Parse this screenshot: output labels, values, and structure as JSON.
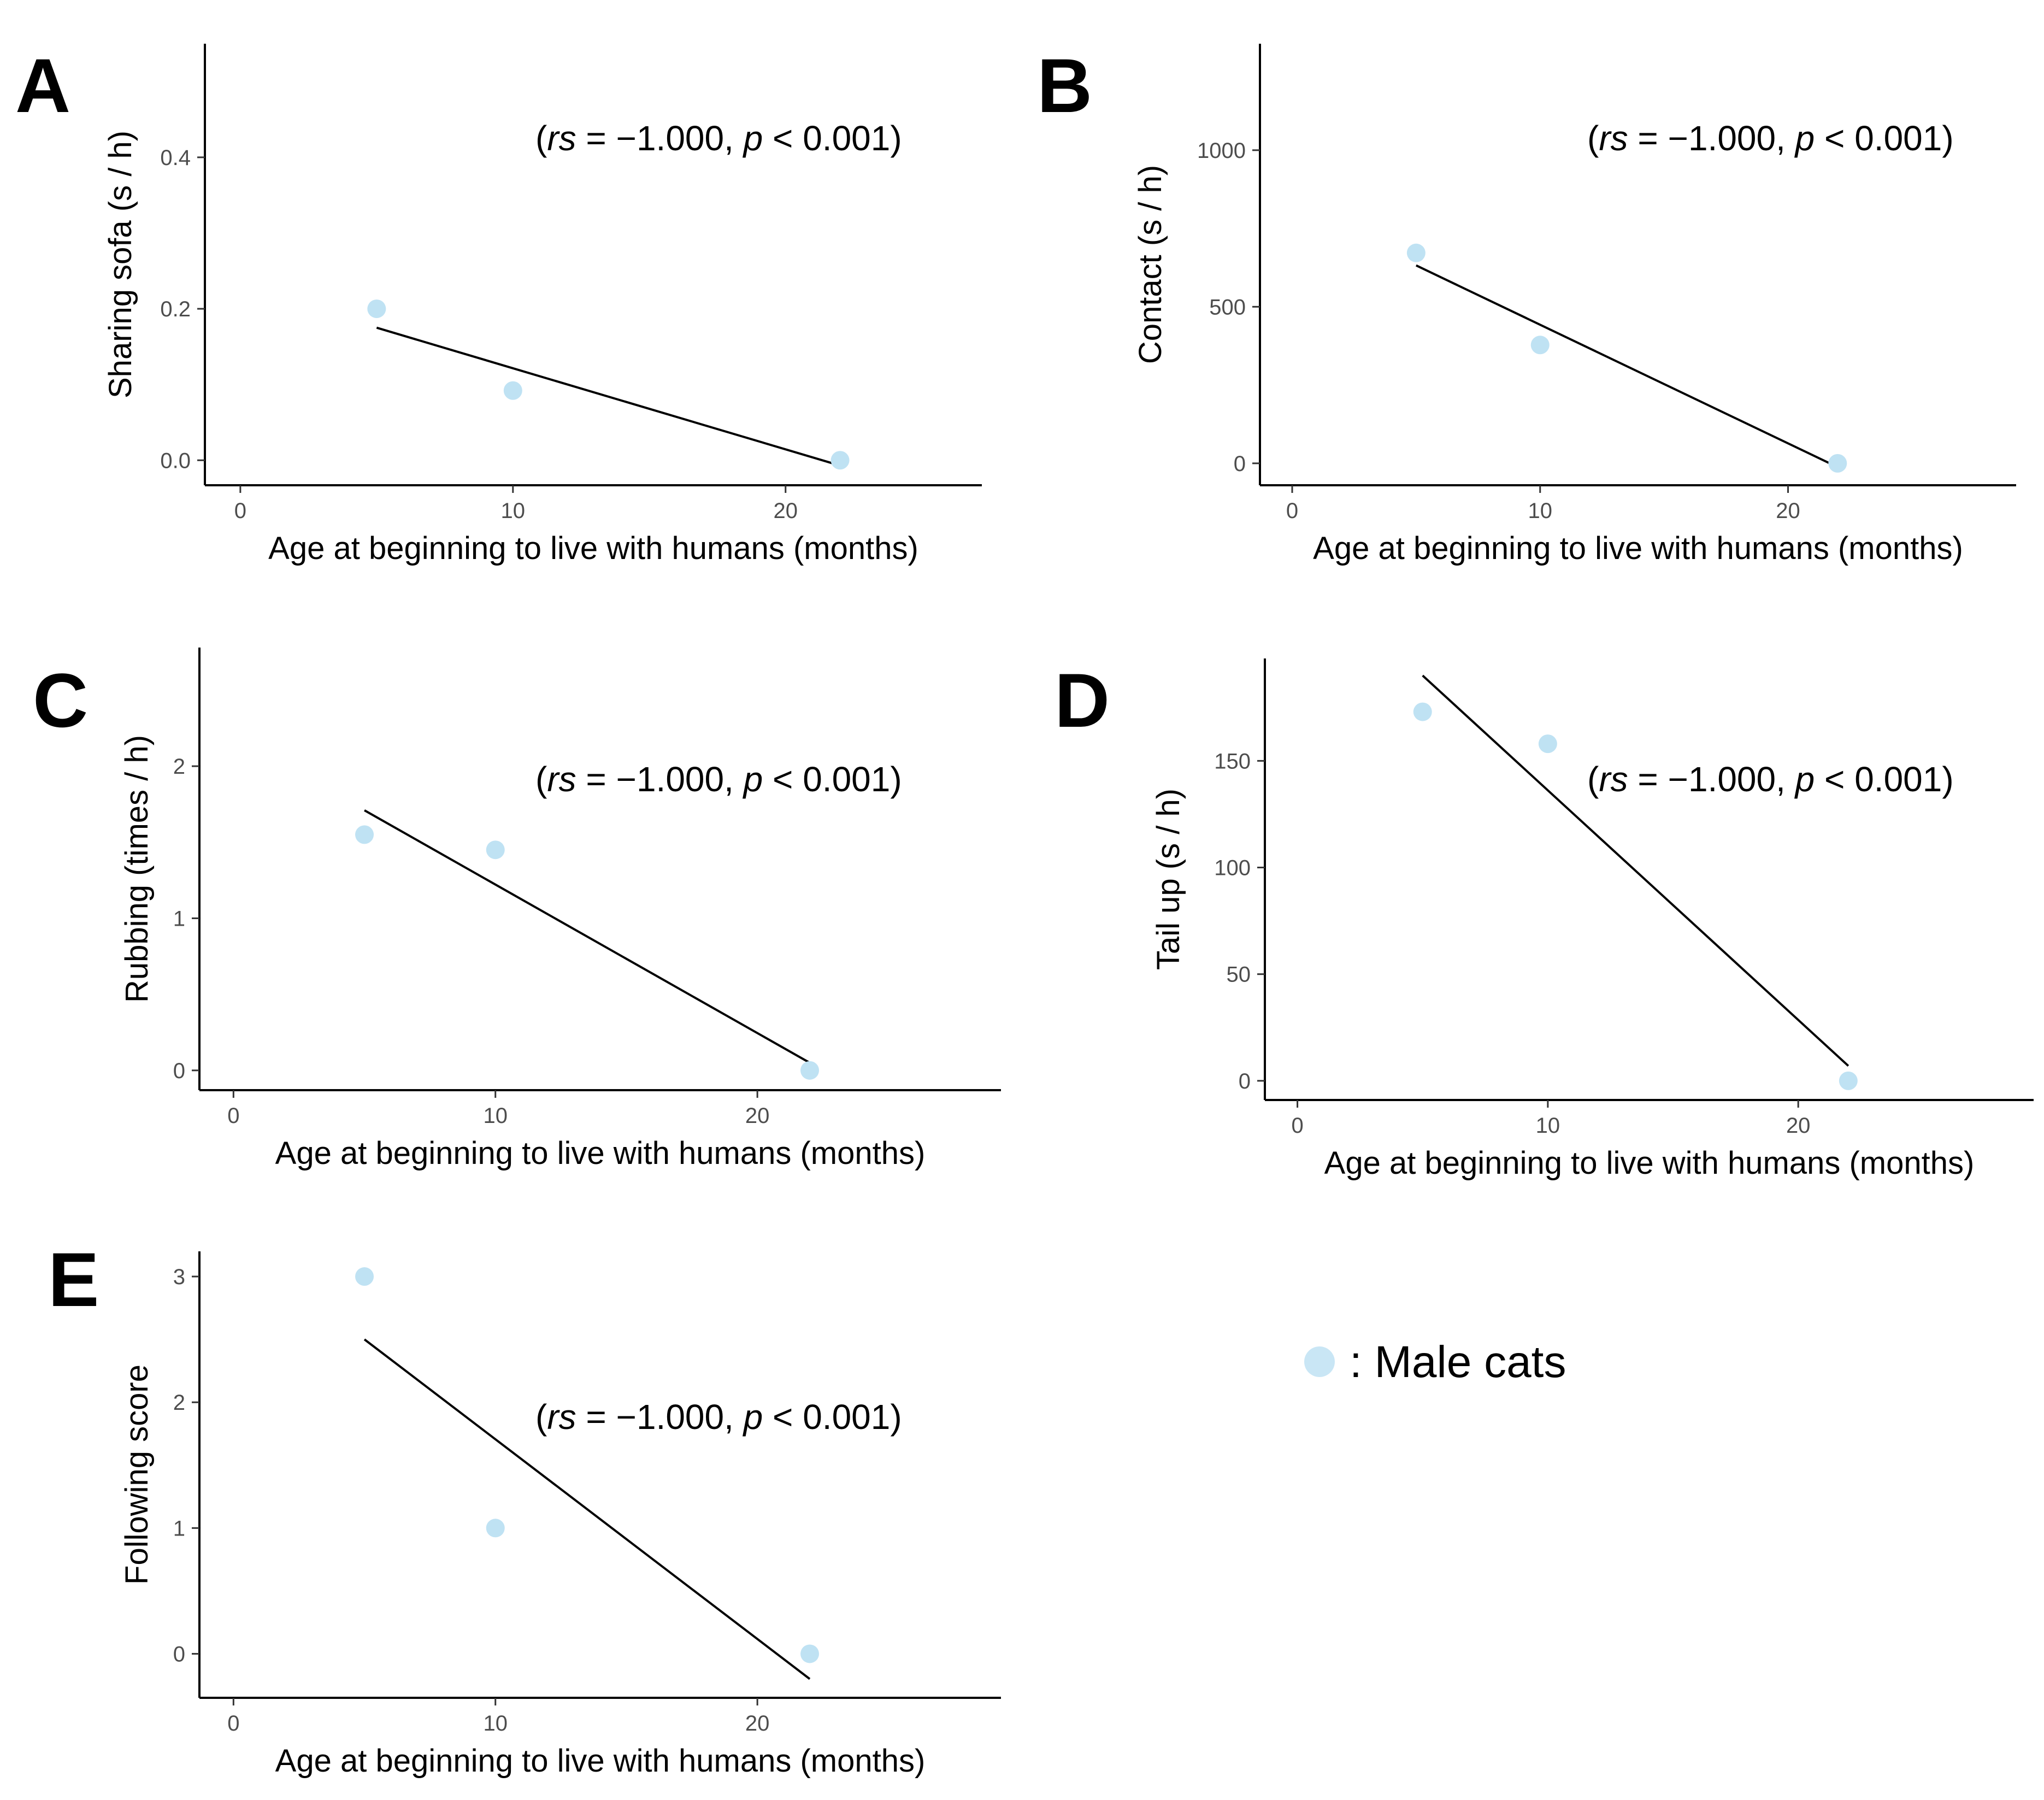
{
  "chart_data": [
    {
      "type": "scatter",
      "panel": "A",
      "xlabel": "Age at beginning to live with humans (months)",
      "ylabel": "Sharing sofa (s / h)",
      "xlim": [
        -1.3,
        27.2
      ],
      "ylim": [
        -0.033,
        0.55
      ],
      "xticks": [
        0,
        10,
        20
      ],
      "xtick_labels": [
        "0",
        "10",
        "20"
      ],
      "yticks": [
        0,
        0.2,
        0.4
      ],
      "ytick_labels": [
        "0.0",
        "0.2",
        "0.4"
      ],
      "points": [
        {
          "x": 5,
          "y": 0.2
        },
        {
          "x": 10,
          "y": 0.092
        },
        {
          "x": 22,
          "y": 0.0
        }
      ],
      "fit_line": [
        {
          "x": 5,
          "y": 0.175
        },
        {
          "x": 22,
          "y": -0.007
        }
      ],
      "annotation": {
        "open": "(",
        "rs": "rs",
        "mid": " = −1.000, ",
        "p": "p",
        "rest": " < 0.001",
        "close": ")"
      }
    },
    {
      "type": "scatter",
      "panel": "B",
      "xlabel": "Age at beginning to live with humans (months)",
      "ylabel": "Contact (s / h)",
      "xlim": [
        -1.3,
        29.2
      ],
      "ylim": [
        -70,
        1340
      ],
      "xticks": [
        0,
        10,
        20
      ],
      "xtick_labels": [
        "0",
        "10",
        "20"
      ],
      "yticks": [
        0,
        500,
        1000
      ],
      "ytick_labels": [
        "0",
        "500",
        "1000"
      ],
      "points": [
        {
          "x": 5,
          "y": 672
        },
        {
          "x": 10,
          "y": 378
        },
        {
          "x": 22,
          "y": 0
        }
      ],
      "fit_line": [
        {
          "x": 5,
          "y": 632
        },
        {
          "x": 22,
          "y": -12
        }
      ],
      "annotation": {
        "open": "(",
        "rs": "rs",
        "mid": " = −1.000, ",
        "p": "p",
        "rest": " < 0.001",
        "close": ")"
      }
    },
    {
      "type": "scatter",
      "panel": "C",
      "xlabel": "Age at beginning to live with humans (months)",
      "ylabel": "Rubbing (times / h)",
      "xlim": [
        -1.3,
        29.3
      ],
      "ylim": [
        -0.13,
        2.78
      ],
      "xticks": [
        0,
        10,
        20
      ],
      "xtick_labels": [
        "0",
        "10",
        "20"
      ],
      "yticks": [
        0,
        1,
        2
      ],
      "ytick_labels": [
        "0",
        "1",
        "2"
      ],
      "points": [
        {
          "x": 5,
          "y": 1.55
        },
        {
          "x": 10,
          "y": 1.45
        },
        {
          "x": 22,
          "y": 0
        }
      ],
      "fit_line": [
        {
          "x": 5,
          "y": 1.71
        },
        {
          "x": 22,
          "y": 0.05
        }
      ],
      "annotation": {
        "open": "(",
        "rs": "rs",
        "mid": " = −1.000, ",
        "p": "p",
        "rest": " < 0.001",
        "close": ")"
      }
    },
    {
      "type": "scatter",
      "panel": "D",
      "xlabel": "Age at beginning to live with humans (months)",
      "ylabel": "Tail up (s / h)",
      "xlim": [
        -1.3,
        29.4
      ],
      "ylim": [
        -9,
        198
      ],
      "xticks": [
        0,
        10,
        20
      ],
      "xtick_labels": [
        "0",
        "10",
        "20"
      ],
      "yticks": [
        0,
        50,
        100,
        150
      ],
      "ytick_labels": [
        "0",
        "50",
        "100",
        "150"
      ],
      "points": [
        {
          "x": 5,
          "y": 173
        },
        {
          "x": 10,
          "y": 158
        },
        {
          "x": 22,
          "y": 0
        }
      ],
      "fit_line": [
        {
          "x": 5,
          "y": 190
        },
        {
          "x": 22,
          "y": 7
        }
      ],
      "annotation": {
        "open": "(",
        "rs": "rs",
        "mid": " = −1.000, ",
        "p": "p",
        "rest": " < 0.001",
        "close": ")"
      }
    },
    {
      "type": "scatter",
      "panel": "E",
      "xlabel": "Age at beginning to live with humans (months)",
      "ylabel": "Following score",
      "xlim": [
        -1.3,
        29.3
      ],
      "ylim": [
        -0.35,
        3.2
      ],
      "xticks": [
        0,
        10,
        20
      ],
      "xtick_labels": [
        "0",
        "10",
        "20"
      ],
      "yticks": [
        0,
        1,
        2,
        3
      ],
      "ytick_labels": [
        "0",
        "1",
        "2",
        "3"
      ],
      "points": [
        {
          "x": 5,
          "y": 3
        },
        {
          "x": 10,
          "y": 1
        },
        {
          "x": 22,
          "y": 0
        }
      ],
      "fit_line": [
        {
          "x": 5,
          "y": 2.5
        },
        {
          "x": 22,
          "y": -0.2
        }
      ],
      "annotation": {
        "open": "(",
        "rs": "rs",
        "mid": " = −1.000, ",
        "p": "p",
        "rest": " < 0.001",
        "close": ")"
      }
    }
  ],
  "legend": {
    "label": ":  Male cats",
    "marker_color": "#c9e6f5"
  },
  "colors": {
    "point": "#bfe2f3",
    "line": "#000000",
    "axis": "#000000",
    "tick_text": "#4d4d4d"
  }
}
